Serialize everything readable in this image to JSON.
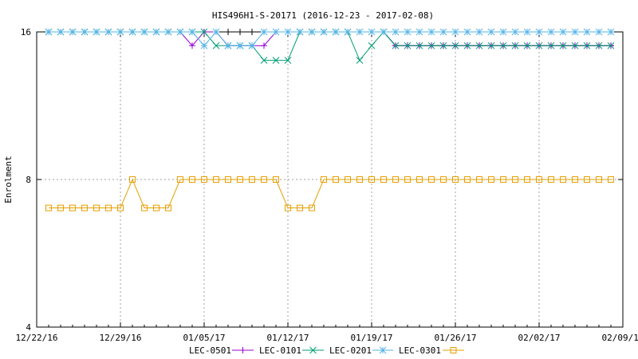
{
  "chart_data": {
    "type": "line",
    "title": "HIS496H1-S-20171 (2016-12-23 - 2017-02-08)",
    "xlabel": "",
    "ylabel": "Enrolment",
    "y_scale": "log2",
    "ylim": [
      4,
      16
    ],
    "y_ticks": [
      4,
      8,
      16
    ],
    "x_range": [
      "2016-12-22",
      "2017-02-09"
    ],
    "x_ticks": [
      {
        "date": "2016-12-22",
        "label": "12/22/16"
      },
      {
        "date": "2016-12-29",
        "label": "12/29/16"
      },
      {
        "date": "2017-01-05",
        "label": "01/05/17"
      },
      {
        "date": "2017-01-12",
        "label": "01/12/17"
      },
      {
        "date": "2017-01-19",
        "label": "01/19/17"
      },
      {
        "date": "2017-01-26",
        "label": "01/26/17"
      },
      {
        "date": "2017-02-02",
        "label": "02/02/17"
      },
      {
        "date": "2017-02-09",
        "label": "02/09/17"
      }
    ],
    "grid": true,
    "legend_position": "bottom",
    "dates": [
      "2016-12-23",
      "2016-12-24",
      "2016-12-25",
      "2016-12-26",
      "2016-12-27",
      "2016-12-28",
      "2016-12-29",
      "2016-12-30",
      "2016-12-31",
      "2017-01-01",
      "2017-01-02",
      "2017-01-03",
      "2017-01-04",
      "2017-01-05",
      "2017-01-06",
      "2017-01-07",
      "2017-01-08",
      "2017-01-09",
      "2017-01-10",
      "2017-01-11",
      "2017-01-12",
      "2017-01-13",
      "2017-01-14",
      "2017-01-15",
      "2017-01-16",
      "2017-01-17",
      "2017-01-18",
      "2017-01-19",
      "2017-01-20",
      "2017-01-21",
      "2017-01-22",
      "2017-01-23",
      "2017-01-24",
      "2017-01-25",
      "2017-01-26",
      "2017-01-27",
      "2017-01-28",
      "2017-01-29",
      "2017-01-30",
      "2017-01-31",
      "2017-02-01",
      "2017-02-02",
      "2017-02-03",
      "2017-02-04",
      "2017-02-05",
      "2017-02-06",
      "2017-02-07",
      "2017-02-08"
    ],
    "series": [
      {
        "name": "LEC-0501",
        "color": "#000000",
        "marker": "plus",
        "values": [
          16,
          16,
          16,
          16,
          16,
          16,
          16,
          16,
          16,
          16,
          16,
          16,
          16,
          16,
          16,
          16,
          16,
          16,
          16,
          16,
          16,
          16,
          16,
          16,
          16,
          16,
          16,
          16,
          16,
          15,
          15,
          15,
          15,
          15,
          15,
          15,
          15,
          15,
          15,
          15,
          15,
          15,
          15,
          15,
          15,
          15,
          15,
          15
        ]
      },
      {
        "name": "LEC-0101",
        "color": "#9400d3",
        "marker": "plus",
        "values": [
          16,
          16,
          16,
          16,
          16,
          16,
          16,
          16,
          16,
          16,
          16,
          16,
          15,
          16,
          16,
          15,
          15,
          15,
          15,
          16,
          16,
          16,
          16,
          16,
          16,
          16,
          16,
          16,
          16,
          15,
          15,
          15,
          15,
          15,
          15,
          15,
          15,
          15,
          15,
          15,
          15,
          15,
          15,
          15,
          15,
          15,
          15,
          15
        ]
      },
      {
        "name": "LEC-0201",
        "color": "#009e73",
        "marker": "x",
        "values": [
          16,
          16,
          16,
          16,
          16,
          16,
          16,
          16,
          16,
          16,
          16,
          16,
          16,
          16,
          15,
          15,
          15,
          15,
          14,
          14,
          14,
          16,
          16,
          16,
          16,
          16,
          14,
          15,
          16,
          15,
          15,
          15,
          15,
          15,
          15,
          15,
          15,
          15,
          15,
          15,
          15,
          15,
          15,
          15,
          15,
          15,
          15,
          15
        ]
      },
      {
        "name": "LEC-0301",
        "color": "#56b4e9",
        "marker": "star",
        "values": [
          16,
          16,
          16,
          16,
          16,
          16,
          16,
          16,
          16,
          16,
          16,
          16,
          16,
          15,
          16,
          15,
          15,
          15,
          16,
          16,
          16,
          16,
          16,
          16,
          16,
          16,
          16,
          16,
          16,
          16,
          16,
          16,
          16,
          16,
          16,
          16,
          16,
          16,
          16,
          16,
          16,
          16,
          16,
          16,
          16,
          16,
          16,
          16
        ]
      },
      {
        "name": "",
        "color": "#e69f00",
        "marker": "square",
        "values": [
          7,
          7,
          7,
          7,
          7,
          7,
          7,
          8,
          7,
          7,
          7,
          8,
          8,
          8,
          8,
          8,
          8,
          8,
          8,
          8,
          7,
          7,
          7,
          8,
          8,
          8,
          8,
          8,
          8,
          8,
          8,
          8,
          8,
          8,
          8,
          8,
          8,
          8,
          8,
          8,
          8,
          8,
          8,
          8,
          8,
          8,
          8,
          8
        ]
      }
    ]
  }
}
